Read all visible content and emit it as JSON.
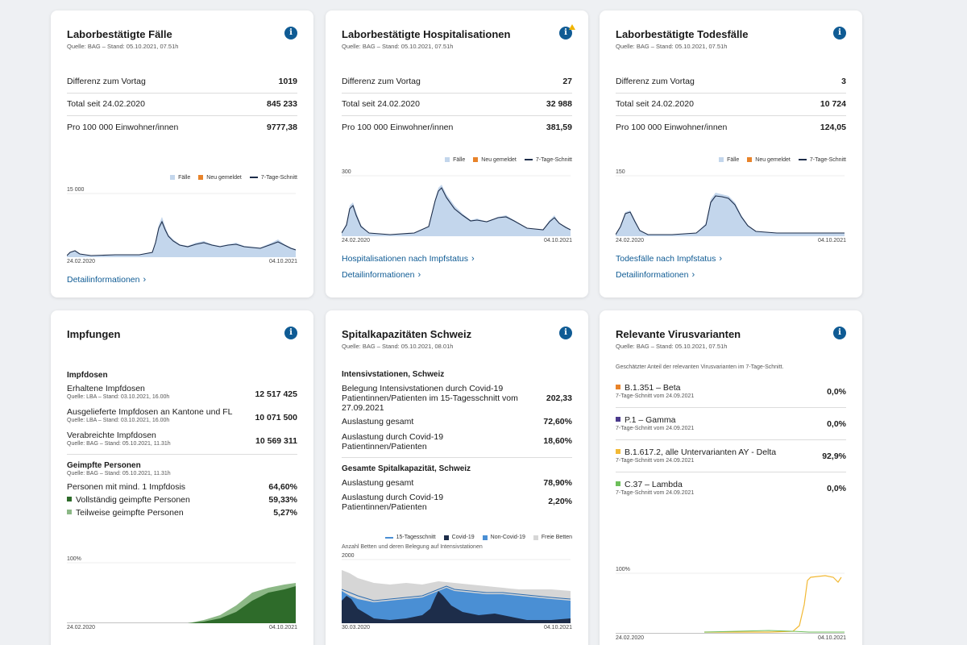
{
  "cases": {
    "title": "Laborbestätigte Fälle",
    "source": "Quelle: BAG – Stand: 05.10.2021, 07.51h",
    "rows": [
      {
        "label": "Differenz zum Vortag",
        "value": "1019"
      },
      {
        "label": "Total seit 24.02.2020",
        "value": "845 233"
      },
      {
        "label": "Pro 100 000 Einwohner/innen",
        "value": "9777,38"
      }
    ],
    "legend": {
      "a": "Fälle",
      "b": "Neu gemeldet",
      "c": "7-Tage-Schnitt"
    },
    "ymax": "15 000",
    "date_start": "24.02.2020",
    "date_end": "04.10.2021",
    "link": "Detailinformationen"
  },
  "hosp": {
    "title": "Laborbestätigte Hospitalisationen",
    "source": "Quelle: BAG – Stand: 05.10.2021, 07.51h",
    "rows": [
      {
        "label": "Differenz zum Vortag",
        "value": "27"
      },
      {
        "label": "Total seit 24.02.2020",
        "value": "32 988"
      },
      {
        "label": "Pro 100 000 Einwohner/innen",
        "value": "381,59"
      }
    ],
    "legend": {
      "a": "Fälle",
      "b": "Neu gemeldet",
      "c": "7-Tage-Schnitt"
    },
    "ymax": "300",
    "date_start": "24.02.2020",
    "date_end": "04.10.2021",
    "link1": "Hospitalisationen nach Impfstatus",
    "link2": "Detailinformationen"
  },
  "deaths": {
    "title": "Laborbestätigte Todesfälle",
    "source": "Quelle: BAG – Stand: 05.10.2021, 07.51h",
    "rows": [
      {
        "label": "Differenz zum Vortag",
        "value": "3"
      },
      {
        "label": "Total seit 24.02.2020",
        "value": "10 724"
      },
      {
        "label": "Pro 100 000 Einwohner/innen",
        "value": "124,05"
      }
    ],
    "legend": {
      "a": "Fälle",
      "b": "Neu gemeldet",
      "c": "7-Tage-Schnitt"
    },
    "ymax": "150",
    "date_start": "24.02.2020",
    "date_end": "04.10.2021",
    "link1": "Todesfälle nach Impfstatus",
    "link2": "Detailinformationen"
  },
  "vacc": {
    "title": "Impfungen",
    "doses_h": "Impfdosen",
    "d1_label": "Erhaltene Impfdosen",
    "d1_src": "Quelle: LBA – Stand: 03.10.2021, 16.00h",
    "d1_value": "12 517 425",
    "d2_label": "Ausgelieferte Impfdosen an Kantone und FL",
    "d2_src": "Quelle: LBA – Stand: 03.10.2021, 16.00h",
    "d2_value": "10 071 500",
    "d3_label": "Verabreichte Impfdosen",
    "d3_src": "Quelle: BAG – Stand: 05.10.2021, 11.31h",
    "d3_value": "10 569 311",
    "persons_h": "Geimpfte Personen",
    "persons_src": "Quelle: BAG – Stand: 05.10.2021, 11.31h",
    "p1_label": "Personen mit mind. 1 Impfdosis",
    "p1_value": "64,60%",
    "p2_label": "Vollständig geimpfte Personen",
    "p2_value": "59,33%",
    "p3_label": "Teilweise geimpfte Personen",
    "p3_value": "5,27%",
    "ymax": "100%",
    "date_start": "24.02.2020",
    "date_end": "04.10.2021",
    "colors": {
      "full": "#2e6b2a",
      "partial": "#8cb886"
    }
  },
  "hospcap": {
    "title": "Spitalkapazitäten Schweiz",
    "source": "Quelle: BAG – Stand: 05.10.2021, 08.01h",
    "icu_h": "Intensivstationen, Schweiz",
    "i1_label": "Belegung Intensivstationen durch Covid-19 Patientinnen/Patienten im 15-Tagesschnitt vom 27.09.2021",
    "i1_value": "202,33",
    "i2_label": "Auslastung gesamt",
    "i2_value": "72,60%",
    "i3_label": "Auslastung durch Covid-19 Patientinnen/Patienten",
    "i3_value": "18,60%",
    "total_h": "Gesamte Spitalkapazität, Schweiz",
    "t1_label": "Auslastung gesamt",
    "t1_value": "78,90%",
    "t2_label": "Auslastung durch Covid-19 Patientinnen/Patienten",
    "t2_value": "2,20%",
    "legend": {
      "a": "15-Tagesschnitt",
      "b": "Covid-19",
      "c": "Non-Covid-19",
      "d": "Freie Betten"
    },
    "chart_caption": "Anzahl Betten und deren Belegung auf Intensivstationen",
    "ymax": "2000",
    "date_start": "30.03.2020",
    "date_end": "04.10.2021"
  },
  "variants": {
    "title": "Relevante Virusvarianten",
    "source": "Quelle: BAG – Stand: 05.10.2021, 07.51h",
    "intro": "Geschätzter Anteil der relevanten Virusvarianten im 7-Tage-Schnitt.",
    "items": [
      {
        "name": "B.1.351 – Beta",
        "sub": "7-Tage-Schnitt vom 24.09.2021",
        "value": "0,0%",
        "color": "#e8832a"
      },
      {
        "name": "P.1 – Gamma",
        "sub": "7-Tage-Schnitt vom 24.09.2021",
        "value": "0,0%",
        "color": "#4b3a8c"
      },
      {
        "name": "B.1.617.2, alle Untervarianten AY - Delta",
        "sub": "7-Tage-Schnitt vom 24.09.2021",
        "value": "92,9%",
        "color": "#f2b935"
      },
      {
        "name": "C.37 – Lambda",
        "sub": "7-Tage-Schnitt vom 24.09.2021",
        "value": "0,0%",
        "color": "#6dbf5a"
      }
    ],
    "ymax": "100%",
    "date_start": "24.02.2020",
    "date_end": "04.10.2021"
  },
  "colors": {
    "bars": "#c3d6ec",
    "new": "#e8832a",
    "avg": "#1d2d4a",
    "link": "#0f5b94"
  }
}
